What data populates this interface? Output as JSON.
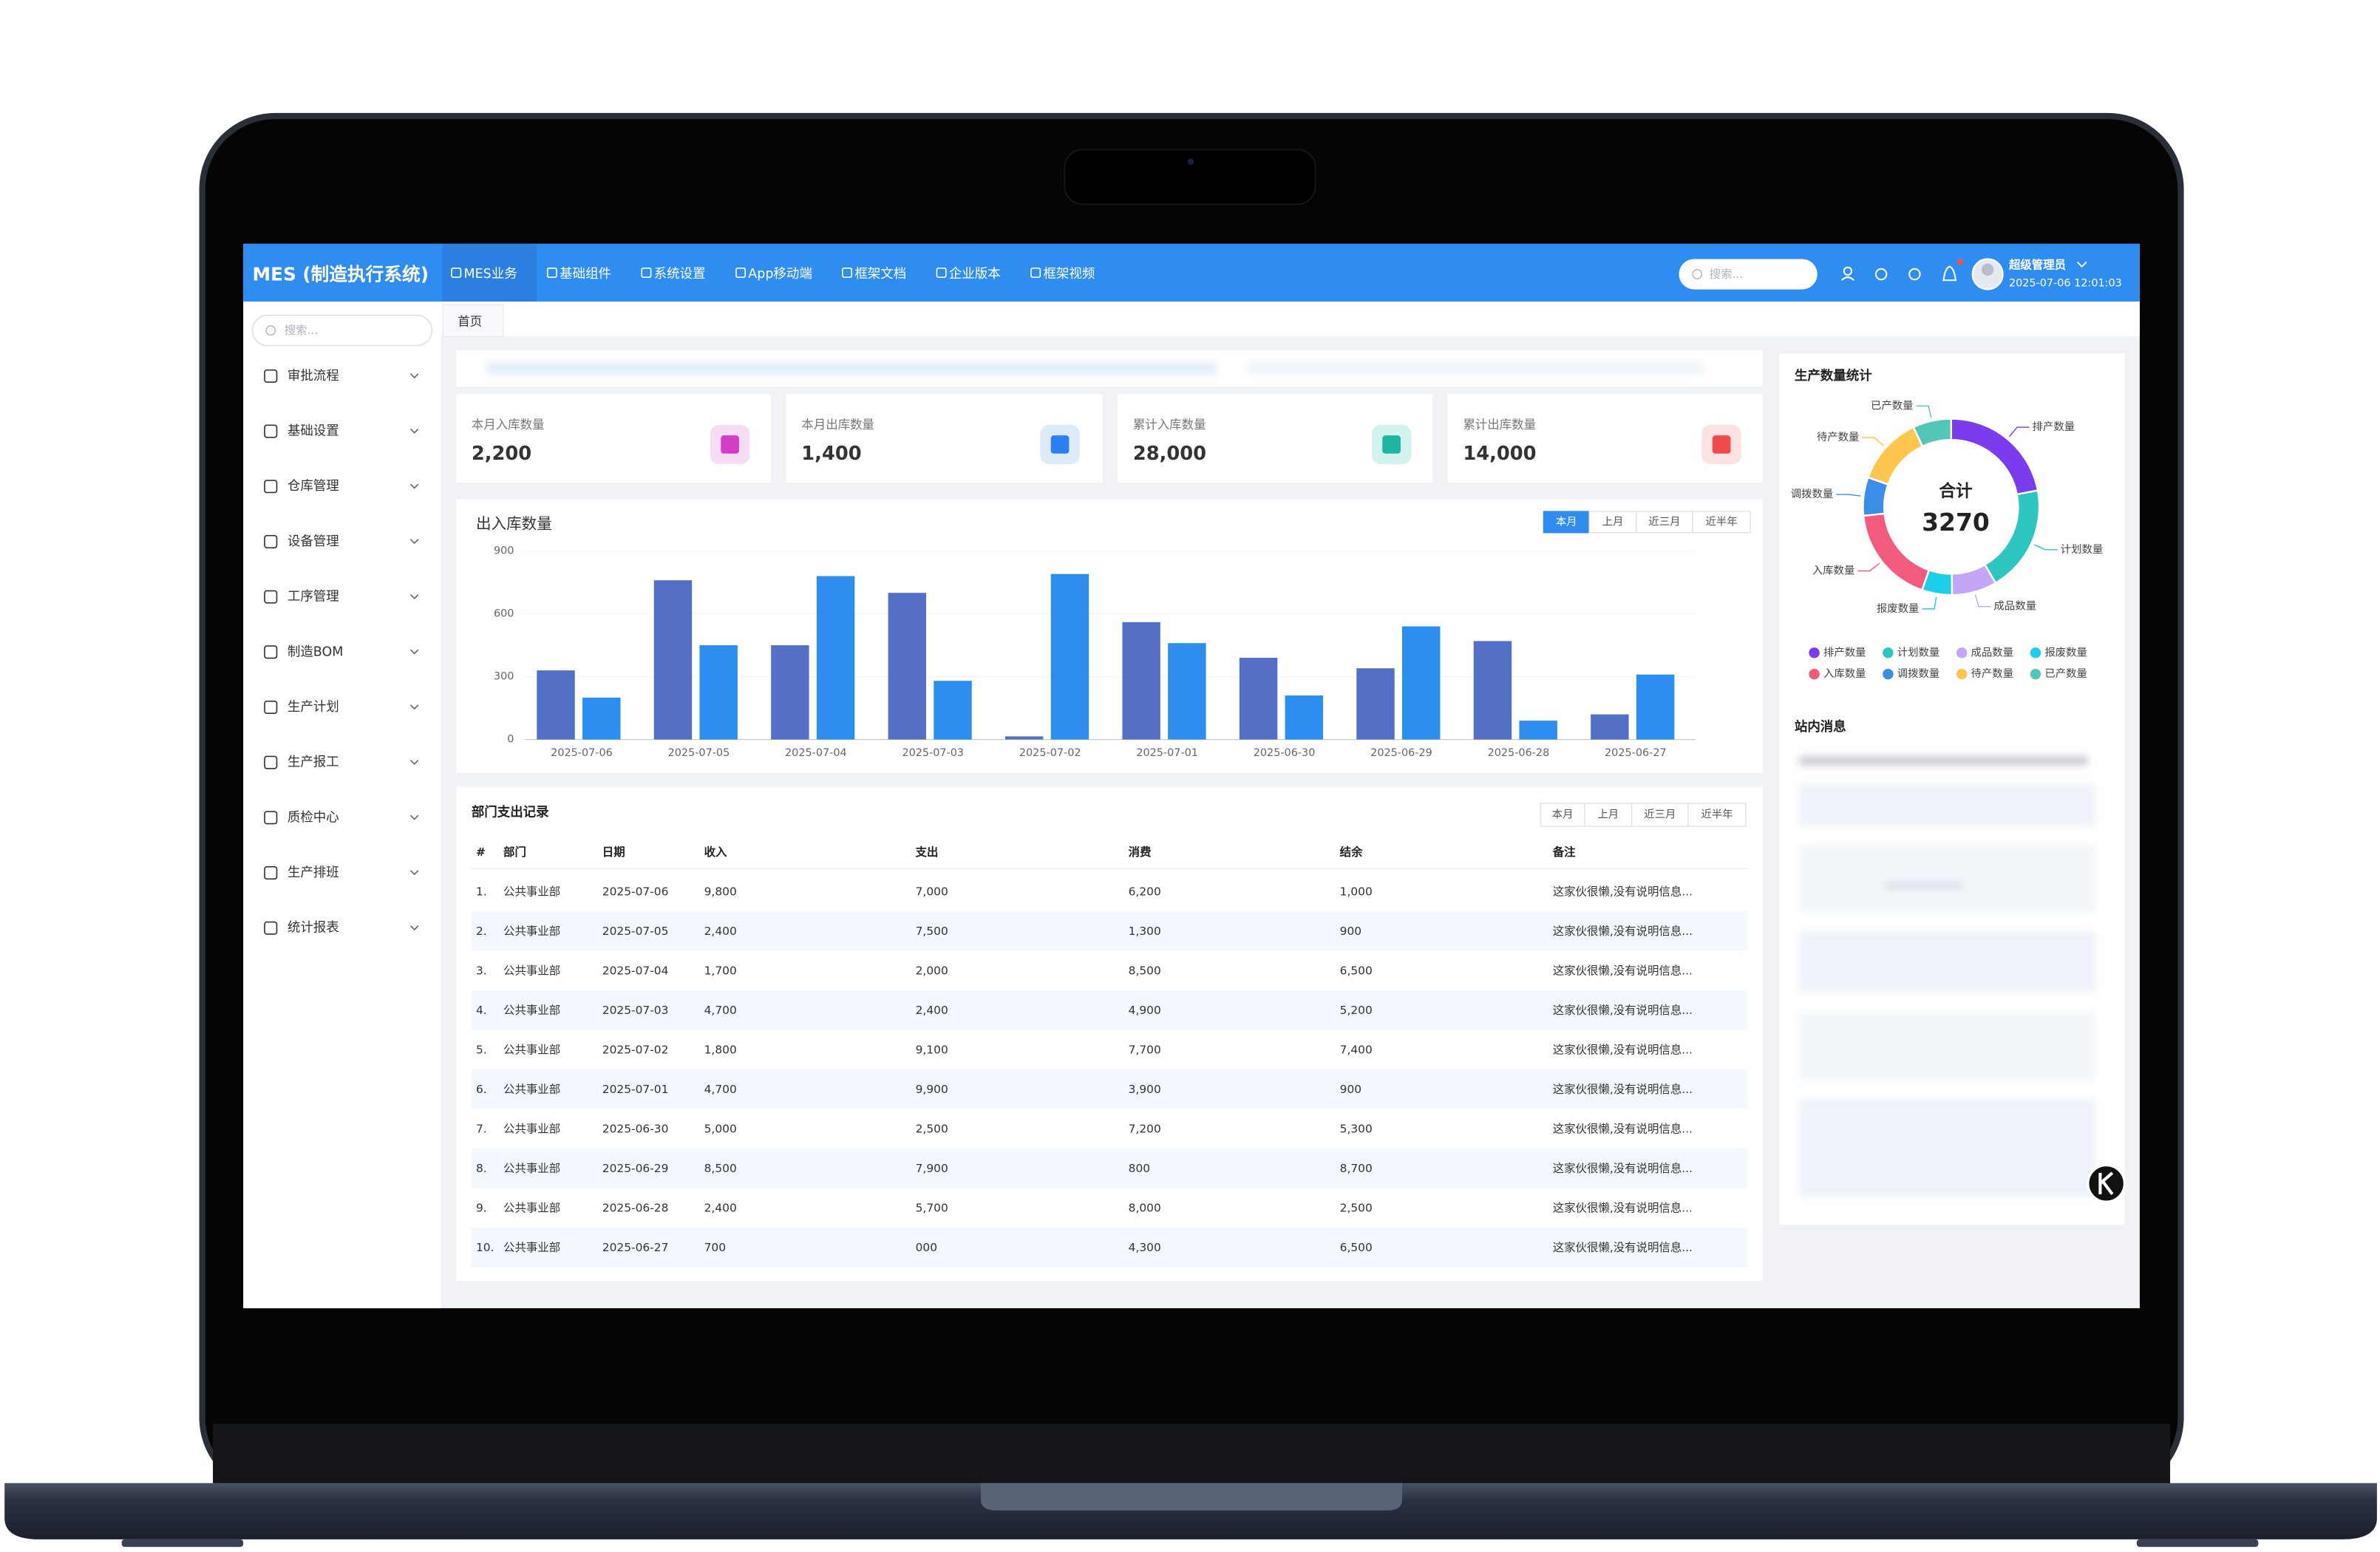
{
  "header": {
    "logo": "MES (制造执行系统)",
    "nav": [
      "MES业务",
      "基础组件",
      "系统设置",
      "App移动端",
      "框架文档",
      "企业版本",
      "框架视频"
    ],
    "search_placeholder": "搜索...",
    "user": "超级管理员",
    "datetime": "2025-07-06 12:01:03"
  },
  "sidebar": {
    "search_placeholder": "搜索...",
    "menu": [
      "审批流程",
      "基础设置",
      "仓库管理",
      "设备管理",
      "工序管理",
      "制造BOM",
      "生产计划",
      "生产报工",
      "质检中心",
      "生产排班",
      "统计报表"
    ]
  },
  "tabs": [
    "首页"
  ],
  "stats": [
    {
      "label": "本月入库数量",
      "value": "2,200"
    },
    {
      "label": "本月出库数量",
      "value": "1,400"
    },
    {
      "label": "累计入库数量",
      "value": "28,000"
    },
    {
      "label": "累计出库数量",
      "value": "14,000"
    }
  ],
  "chart_data": [
    {
      "type": "bar",
      "title": "出入库数量",
      "filters": [
        "本月",
        "上月",
        "近三月",
        "近半年"
      ],
      "categories": [
        "2025-07-06",
        "2025-07-05",
        "2025-07-04",
        "2025-07-03",
        "2025-07-02",
        "2025-07-01",
        "2025-06-30",
        "2025-06-29",
        "2025-06-28",
        "2025-06-27"
      ],
      "series": [
        {
          "color": "#5470c6",
          "values": [
            330,
            760,
            450,
            700,
            15,
            560,
            390,
            340,
            470,
            120
          ]
        },
        {
          "color": "#2b8ef0",
          "values": [
            200,
            450,
            780,
            280,
            790,
            460,
            210,
            540,
            90,
            310
          ]
        }
      ],
      "ylim": [
        0,
        900
      ],
      "yticks": [
        0,
        300,
        600,
        900
      ]
    },
    {
      "type": "pie",
      "title": "生产数量统计",
      "center_label": "合计",
      "total": 3270,
      "categories": [
        "排产数量",
        "计划数量",
        "成品数量",
        "报废数量",
        "入库数量",
        "调拨数量",
        "待产数量",
        "已产数量"
      ],
      "colors": [
        "#7b3cf0",
        "#2ec7c0",
        "#c3a6f5",
        "#1ccfe8",
        "#f25a7e",
        "#3a8ee6",
        "#ffc64d",
        "#52c7b8"
      ],
      "values": [
        720,
        640,
        270,
        180,
        590,
        230,
        410,
        230
      ]
    }
  ],
  "table": {
    "title": "部门支出记录",
    "filters": [
      "本月",
      "上月",
      "近三月",
      "近半年"
    ],
    "columns": [
      "#",
      "部门",
      "日期",
      "收入",
      "支出",
      "消费",
      "结余",
      "备注"
    ],
    "rows": [
      [
        "1.",
        "公共事业部",
        "2025-07-06",
        "9,800",
        "7,000",
        "6,200",
        "1,000",
        "这家伙很懒,没有说明信息..."
      ],
      [
        "2.",
        "公共事业部",
        "2025-07-05",
        "2,400",
        "7,500",
        "1,300",
        "900",
        "这家伙很懒,没有说明信息..."
      ],
      [
        "3.",
        "公共事业部",
        "2025-07-04",
        "1,700",
        "2,000",
        "8,500",
        "6,500",
        "这家伙很懒,没有说明信息..."
      ],
      [
        "4.",
        "公共事业部",
        "2025-07-03",
        "4,700",
        "2,400",
        "4,900",
        "5,200",
        "这家伙很懒,没有说明信息..."
      ],
      [
        "5.",
        "公共事业部",
        "2025-07-02",
        "1,800",
        "9,100",
        "7,700",
        "7,400",
        "这家伙很懒,没有说明信息..."
      ],
      [
        "6.",
        "公共事业部",
        "2025-07-01",
        "4,700",
        "9,900",
        "3,900",
        "900",
        "这家伙很懒,没有说明信息..."
      ],
      [
        "7.",
        "公共事业部",
        "2025-06-30",
        "5,000",
        "2,500",
        "7,200",
        "5,300",
        "这家伙很懒,没有说明信息..."
      ],
      [
        "8.",
        "公共事业部",
        "2025-06-29",
        "8,500",
        "7,900",
        "800",
        "8,700",
        "这家伙很懒,没有说明信息..."
      ],
      [
        "9.",
        "公共事业部",
        "2025-06-28",
        "2,400",
        "5,700",
        "8,000",
        "2,500",
        "这家伙很懒,没有说明信息..."
      ],
      [
        "10.",
        "公共事业部",
        "2025-06-27",
        "700",
        "000",
        "4,300",
        "6,500",
        "这家伙很懒,没有说明信息..."
      ]
    ]
  },
  "messages": {
    "title": "站内消息"
  }
}
